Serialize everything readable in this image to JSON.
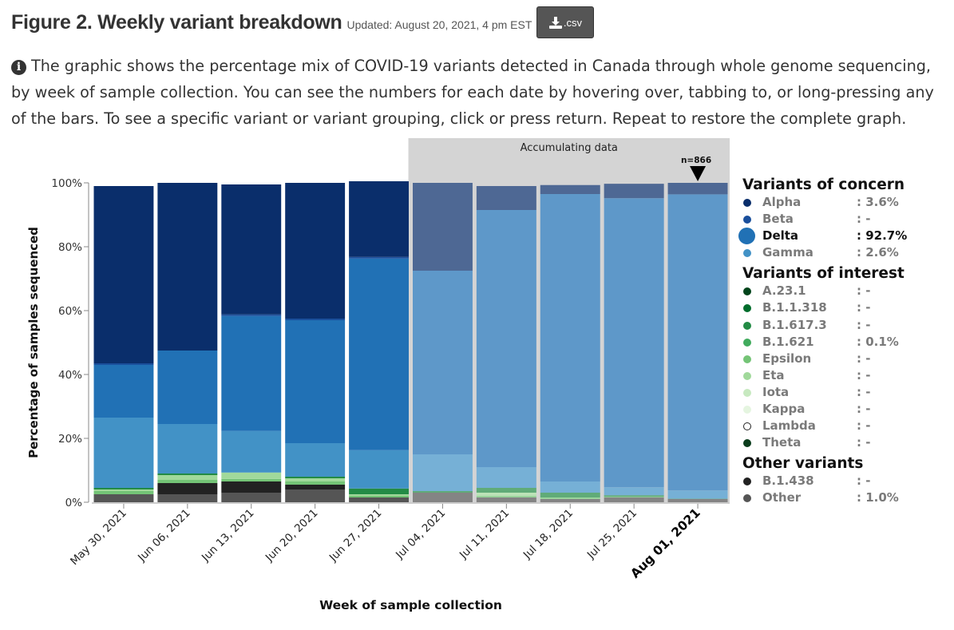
{
  "header": {
    "title": "Figure 2. Weekly variant breakdown",
    "updated": "Updated: August 20, 2021, 4 pm EST",
    "csv_label": ".csv"
  },
  "description": "The graphic shows the percentage mix of COVID-19 variants detected in Canada through whole genome sequencing, by week of sample collection. You can see the numbers for each date by hovering over, tabbing to, or long-pressing any of the bars. To see a specific variant or variant grouping, click or press return. Repeat to restore the complete graph.",
  "icons": {
    "info": "info-circle-icon",
    "download": "download-icon"
  },
  "legend": {
    "groups": [
      {
        "title": "Variants of concern",
        "items": [
          {
            "name": "Alpha",
            "value": ": 3.6%",
            "color": "#0a2e6b",
            "selected": false
          },
          {
            "name": "Beta",
            "value": ": -",
            "color": "#1a4f9c",
            "selected": false
          },
          {
            "name": "Delta",
            "value": ": 92.7%",
            "color": "#2171b5",
            "selected": true
          },
          {
            "name": "Gamma",
            "value": ": 2.6%",
            "color": "#4292c6",
            "selected": false
          }
        ]
      },
      {
        "title": "Variants of interest",
        "items": [
          {
            "name": "A.23.1",
            "value": ": -",
            "color": "#00441b",
            "selected": false
          },
          {
            "name": "B.1.1.318",
            "value": ": -",
            "color": "#006d2c",
            "selected": false
          },
          {
            "name": "B.1.617.3",
            "value": ": -",
            "color": "#238b45",
            "selected": false
          },
          {
            "name": "B.1.621",
            "value": ": 0.1%",
            "color": "#41ab5d",
            "selected": false
          },
          {
            "name": "Epsilon",
            "value": ": -",
            "color": "#74c476",
            "selected": false
          },
          {
            "name": "Eta",
            "value": ": -",
            "color": "#a1d99b",
            "selected": false
          },
          {
            "name": "Iota",
            "value": ": -",
            "color": "#c7e9c0",
            "selected": false
          },
          {
            "name": "Kappa",
            "value": ": -",
            "color": "#e5f5e0",
            "selected": false
          },
          {
            "name": "Lambda",
            "value": ": -",
            "color": "#ffffff",
            "selected": false
          },
          {
            "name": "Theta",
            "value": ": -",
            "color": "#0b3d1c",
            "selected": false
          }
        ]
      },
      {
        "title": "Other variants",
        "items": [
          {
            "name": "B.1.438",
            "value": ": -",
            "color": "#222222",
            "selected": false
          },
          {
            "name": "Other",
            "value": ": 1.0%",
            "color": "#555555",
            "selected": false
          }
        ]
      }
    ]
  },
  "chart_data": {
    "type": "bar",
    "stacked": true,
    "xlabel": "Week of sample collection",
    "ylabel": "Percentage of samples sequenced",
    "ylim": [
      0,
      100
    ],
    "yticks": [
      "0%",
      "20%",
      "40%",
      "60%",
      "80%",
      "100%"
    ],
    "categories": [
      "May 30, 2021",
      "Jun 06, 2021",
      "Jun 13, 2021",
      "Jun 20, 2021",
      "Jun 27, 2021",
      "Jul 04, 2021",
      "Jul 11, 2021",
      "Jul 18, 2021",
      "Jul 25, 2021",
      "Aug 01, 2021"
    ],
    "highlighted_category": "Aug 01, 2021",
    "annotation": {
      "label": "Accumulating data",
      "from": "Jul 04, 2021",
      "to": "Aug 01, 2021"
    },
    "marker": {
      "category": "Aug 01, 2021",
      "label": "n=866"
    },
    "series": [
      {
        "name": "Other",
        "color": "#555555",
        "values": [
          2.5,
          2.5,
          3,
          4,
          1.5,
          3,
          1.5,
          1,
          1.5,
          1
        ]
      },
      {
        "name": "B.1.438",
        "color": "#222222",
        "values": [
          0,
          3.5,
          3.5,
          1.5,
          0,
          0,
          0,
          0,
          0,
          0
        ]
      },
      {
        "name": "Epsilon",
        "color": "#74c476",
        "values": [
          1,
          1,
          0.8,
          1,
          0.5,
          0,
          0.5,
          0.5,
          0.2,
          0
        ]
      },
      {
        "name": "Eta",
        "color": "#a1d99b",
        "values": [
          0.5,
          1.5,
          2,
          1,
          0.5,
          0,
          1,
          0,
          0,
          0
        ]
      },
      {
        "name": "B.1.621",
        "color": "#238b45",
        "values": [
          0.5,
          0.5,
          0,
          0.5,
          1.8,
          0.5,
          1.5,
          1.5,
          0.5,
          0.1
        ]
      },
      {
        "name": "Gamma",
        "color": "#4292c6",
        "values": [
          22,
          15.5,
          13,
          10.5,
          12,
          11.5,
          6.5,
          3.5,
          2.5,
          2.6
        ]
      },
      {
        "name": "Delta",
        "color": "#2171b5",
        "values": [
          16.5,
          23,
          36,
          38.5,
          60,
          57.5,
          80.5,
          90,
          90.5,
          92.7
        ]
      },
      {
        "name": "Beta",
        "color": "#1a4f9c",
        "values": [
          0.5,
          0,
          0.5,
          0.5,
          0.5,
          0,
          0,
          0,
          0,
          0
        ]
      },
      {
        "name": "Alpha",
        "color": "#0a2e6b",
        "values": [
          55.5,
          52.5,
          40.7,
          42.5,
          23.7,
          27.5,
          7.5,
          2.8,
          4.5,
          3.6
        ]
      }
    ]
  }
}
